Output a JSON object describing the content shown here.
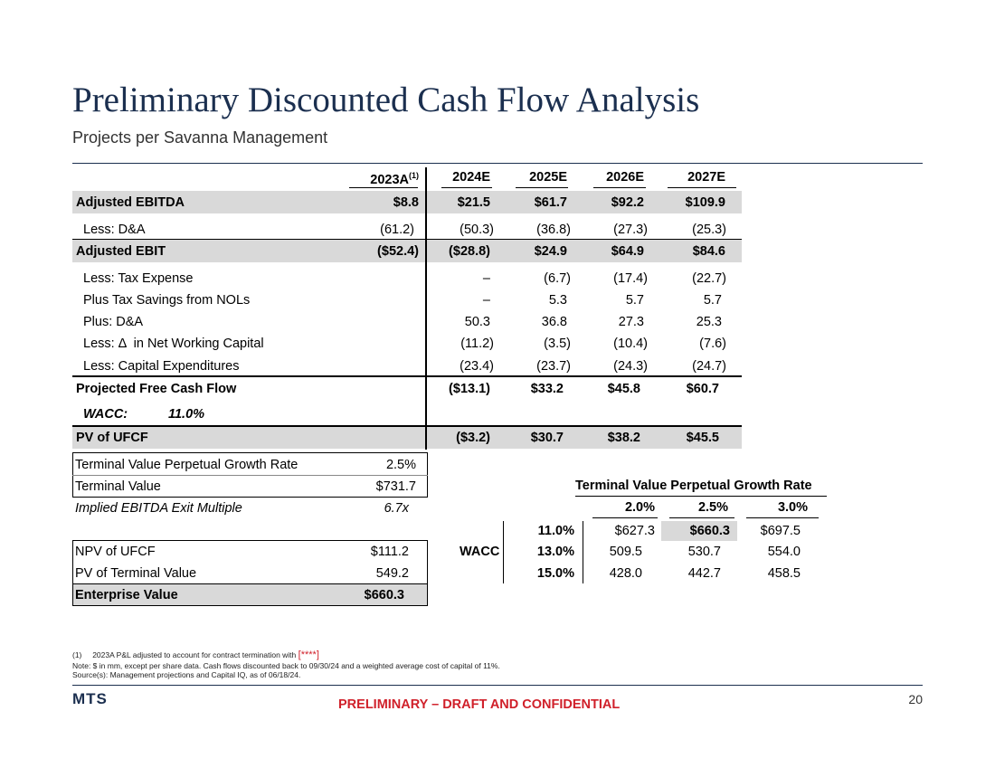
{
  "header": {
    "title": "Preliminary Discounted Cash Flow Analysis",
    "subtitle": "Projects per Savanna Management"
  },
  "dcf": {
    "columns": [
      "2023A",
      "2024E",
      "2025E",
      "2026E",
      "2027E"
    ],
    "first_col_sup": "(1)",
    "rows": [
      {
        "label": "Adjusted EBITDA",
        "values": [
          "$8.8",
          "$21.5",
          "$61.7",
          "$92.2",
          "$109.9"
        ]
      },
      {
        "label": "Less: D&A",
        "values": [
          "(61.2)",
          "(50.3)",
          "(36.8)",
          "(27.3)",
          "(25.3)"
        ]
      },
      {
        "label": "Adjusted EBIT",
        "values": [
          "($52.4)",
          "($28.8)",
          "$24.9",
          "$64.9",
          "$84.6"
        ]
      },
      {
        "label": "Less: Tax Expense",
        "values": [
          "",
          "–",
          "(6.7)",
          "(17.4)",
          "(22.7)"
        ]
      },
      {
        "label": "Plus Tax Savings from NOLs",
        "values": [
          "",
          "–",
          "5.3",
          "5.7",
          "5.7"
        ]
      },
      {
        "label": "Plus: D&A",
        "values": [
          "",
          "50.3",
          "36.8",
          "27.3",
          "25.3"
        ]
      },
      {
        "label": "Less: Δ  in Net Working Capital",
        "values": [
          "",
          "(11.2)",
          "(3.5)",
          "(10.4)",
          "(7.6)"
        ]
      },
      {
        "label": "Less: Capital Expenditures",
        "values": [
          "",
          "(23.4)",
          "(23.7)",
          "(24.3)",
          "(24.7)"
        ]
      },
      {
        "label": "Projected Free Cash Flow",
        "values": [
          "",
          "($13.1)",
          "$33.2",
          "$45.8",
          "$60.7"
        ]
      },
      {
        "label": "PV of UFCF",
        "values": [
          "",
          "($3.2)",
          "$30.7",
          "$38.2",
          "$45.5"
        ]
      }
    ],
    "wacc_label": "WACC:",
    "wacc_value": "11.0%"
  },
  "terminal": {
    "growth_label": "Terminal Value Perpetual Growth Rate",
    "growth_value": "2.5%",
    "tv_label": "Terminal Value",
    "tv_value": "$731.7",
    "multiple_label": "Implied EBITDA Exit Multiple",
    "multiple_value": "6.7x"
  },
  "valuation": {
    "npv_label": "NPV of UFCF",
    "npv_value": "$111.2",
    "pvtv_label": "PV of Terminal Value",
    "pvtv_value": "549.2",
    "ev_label": "Enterprise Value",
    "ev_value": "$660.3"
  },
  "sensitivity": {
    "title": "Terminal Value Perpetual Growth Rate",
    "row_axis_label": "WACC",
    "growth_rates": [
      "2.0%",
      "2.5%",
      "3.0%"
    ],
    "wacc_rates": [
      "11.0%",
      "13.0%",
      "15.0%"
    ],
    "values": [
      [
        "$627.3",
        "$660.3",
        "$697.5"
      ],
      [
        "509.5",
        "530.7",
        "554.0"
      ],
      [
        "428.0",
        "442.7",
        "458.5"
      ]
    ]
  },
  "footnotes": {
    "note1_marker": "(1)",
    "note1_text": "2023A P&L adjusted to account for contract termination with",
    "note1_redacted": "[****]",
    "note2": "Note: $ in mm, except per share data. Cash flows discounted back to 09/30/24 and a weighted average cost of capital of 11%.",
    "note3": "Source(s): Management projections and Capital IQ, as of 06/18/24."
  },
  "footer": {
    "logo": "MTS",
    "confidential": "PRELIMINARY – DRAFT AND CONFIDENTIAL",
    "page_number": "20"
  },
  "colors": {
    "title": "#1b2f4f",
    "shade": "#d9d9d9",
    "confidential": "#d0202a"
  }
}
